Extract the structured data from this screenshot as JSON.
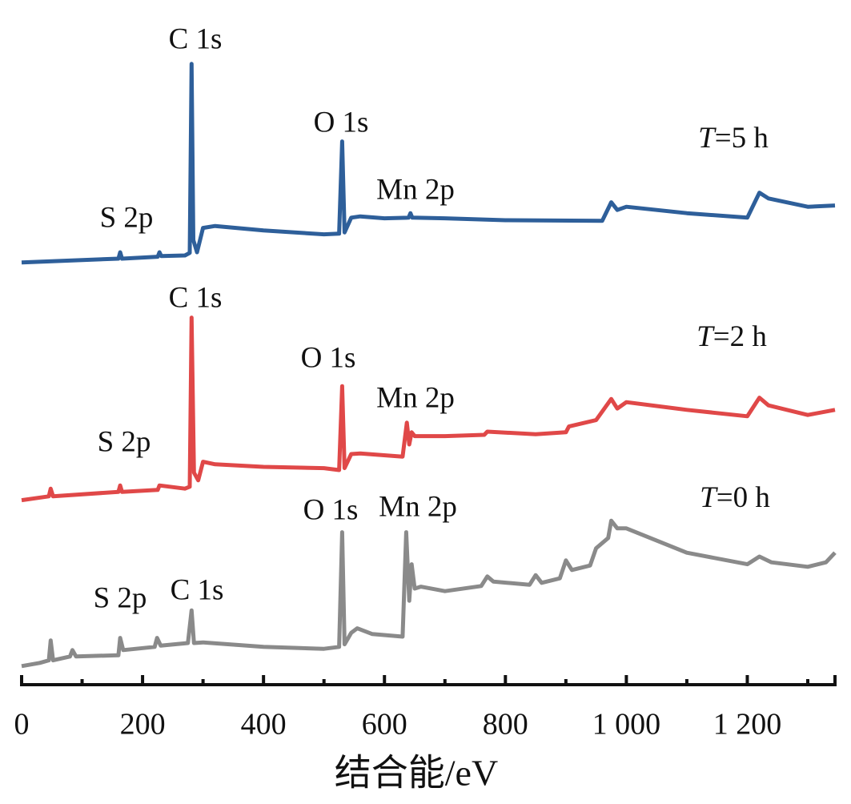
{
  "chart_data": {
    "type": "line",
    "x_label": "结合能/eV",
    "xlim": [
      0,
      1345
    ],
    "xticks": [
      0,
      200,
      400,
      600,
      800,
      {
        "value": 1000,
        "label": "1 000"
      },
      {
        "value": 1200,
        "label": "1 200"
      }
    ],
    "xminor": [
      100,
      300,
      500,
      700,
      900,
      1100,
      1300
    ],
    "ylim": [
      0,
      102
    ],
    "series": [
      {
        "name": "T=5 h",
        "color": "#2e5f9a",
        "peak_labels": [
          "S 2p",
          "C 1s",
          "O 1s",
          "Mn 2p"
        ],
        "x": [
          0,
          50,
          160,
          163,
          166,
          225,
          228,
          231,
          270,
          278,
          281,
          284,
          290,
          300,
          320,
          400,
          500,
          525,
          530,
          534,
          545,
          560,
          600,
          640,
          643,
          646,
          700,
          800,
          960,
          975,
          985,
          1000,
          1100,
          1200,
          1220,
          1235,
          1260,
          1300,
          1345
        ],
        "values": [
          65.9,
          66.1,
          66.5,
          67.5,
          66.5,
          66.8,
          67.5,
          66.9,
          67,
          67.4,
          96.9,
          69.4,
          67.5,
          71.3,
          71.6,
          70.9,
          70.3,
          70.4,
          84.8,
          70.6,
          72.9,
          73.1,
          72.8,
          72.9,
          73.6,
          72.9,
          72.8,
          72.5,
          72.4,
          75.3,
          74.1,
          74.6,
          73.6,
          72.9,
          76.8,
          75.9,
          75.4,
          74.6,
          74.8
        ]
      },
      {
        "name": "T=2 h",
        "color": "#e04848",
        "peak_labels": [
          "S 2p",
          "C 1s",
          "O 1s",
          "Mn 2p"
        ],
        "x": [
          0,
          45,
          48,
          52,
          160,
          163,
          166,
          225,
          228,
          270,
          278,
          281,
          285,
          292,
          300,
          320,
          400,
          500,
          525,
          530,
          534,
          545,
          560,
          630,
          637,
          641,
          645,
          650,
          700,
          765,
          770,
          850,
          900,
          905,
          950,
          975,
          985,
          1000,
          1100,
          1200,
          1220,
          1235,
          1300,
          1345
        ],
        "values": [
          28.8,
          29.4,
          30.6,
          29.4,
          30.1,
          31.1,
          30.1,
          30.4,
          31.1,
          30.6,
          30.9,
          57.3,
          33.1,
          31.9,
          34.8,
          34.4,
          34,
          33.8,
          33.5,
          46.6,
          33.8,
          36,
          36.1,
          35.6,
          40.9,
          37.5,
          39.4,
          38.8,
          38.8,
          39,
          39.5,
          39.1,
          39.4,
          40.3,
          41.3,
          44.6,
          43.1,
          44.1,
          42.9,
          41.9,
          44.8,
          43.6,
          42.1,
          42.9
        ]
      },
      {
        "name": "T=0 h",
        "color": "#8a8a8a",
        "peak_labels": [
          "S 2p",
          "C 1s",
          "O 1s",
          "Mn 2p"
        ],
        "x": [
          0,
          30,
          45,
          48,
          52,
          80,
          84,
          90,
          160,
          163,
          168,
          220,
          224,
          230,
          275,
          281,
          285,
          300,
          400,
          500,
          525,
          530,
          534,
          545,
          555,
          580,
          630,
          636,
          641,
          645,
          650,
          660,
          700,
          760,
          770,
          780,
          840,
          850,
          860,
          890,
          900,
          910,
          940,
          950,
          970,
          975,
          985,
          1000,
          1100,
          1200,
          1220,
          1240,
          1300,
          1330,
          1345
        ],
        "values": [
          2.9,
          3.4,
          3.8,
          6.9,
          3.8,
          4.4,
          5.4,
          4.4,
          4.6,
          7.3,
          5.4,
          5.9,
          7.3,
          6.1,
          6.5,
          11.6,
          6.5,
          6.6,
          5.9,
          5.6,
          5.9,
          23.8,
          6.3,
          8.1,
          8.8,
          7.9,
          7.5,
          23.8,
          13.1,
          18.8,
          15,
          15.3,
          14.6,
          15.4,
          16.9,
          16.1,
          15.6,
          17.1,
          15.9,
          16.6,
          19.4,
          17.9,
          18.6,
          21.3,
          22.9,
          25.6,
          24.4,
          24.4,
          20.6,
          18.8,
          20,
          19.1,
          18.4,
          19.1,
          20.6
        ]
      }
    ]
  }
}
